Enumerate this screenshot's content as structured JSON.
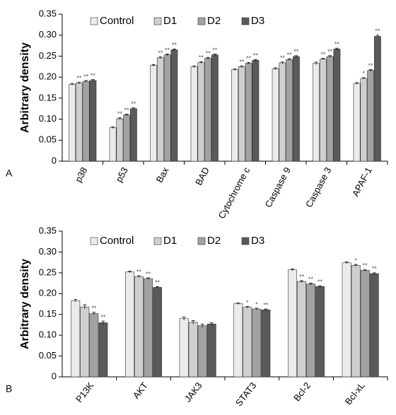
{
  "chart_data": [
    {
      "type": "bar",
      "panel": "A",
      "ylabel": "Arbitrary density",
      "categories": [
        "p38",
        "p53",
        "Bax",
        "BAD",
        "Cytochrome c",
        "Caspase 9",
        "Caspase 3",
        "APAF-1"
      ],
      "series": [
        {
          "name": "Control",
          "color": "#ebebeb",
          "values": [
            0.183,
            0.08,
            0.228,
            0.225,
            0.218,
            0.22,
            0.233,
            0.185
          ],
          "errors": [
            0.002,
            0.002,
            0.002,
            0.002,
            0.002,
            0.002,
            0.003,
            0.002
          ],
          "significance": [
            null,
            null,
            null,
            null,
            null,
            null,
            null,
            null
          ]
        },
        {
          "name": "D1",
          "color": "#cfcfcf",
          "values": [
            0.186,
            0.101,
            0.246,
            0.235,
            0.225,
            0.234,
            0.243,
            0.197
          ],
          "errors": [
            0.002,
            0.002,
            0.002,
            0.002,
            0.002,
            0.002,
            0.002,
            0.002
          ],
          "significance": [
            "**",
            "**",
            "**",
            "**",
            "**",
            "**",
            "**",
            "*"
          ]
        },
        {
          "name": "D2",
          "color": "#a2a2a2",
          "values": [
            0.19,
            0.11,
            0.253,
            0.245,
            0.233,
            0.242,
            0.249,
            0.216
          ],
          "errors": [
            0.002,
            0.002,
            0.002,
            0.002,
            0.002,
            0.002,
            0.002,
            0.002
          ],
          "significance": [
            "**",
            "**",
            "**",
            "**",
            "**",
            "**",
            "**",
            "**"
          ]
        },
        {
          "name": "D3",
          "color": "#5a5a5a",
          "values": [
            0.192,
            0.125,
            0.265,
            0.253,
            0.24,
            0.249,
            0.267,
            0.297
          ],
          "errors": [
            0.002,
            0.002,
            0.002,
            0.002,
            0.002,
            0.002,
            0.002,
            0.003
          ],
          "significance": [
            "**",
            "**",
            "**",
            "**",
            "**",
            "**",
            "**",
            "**"
          ]
        }
      ],
      "ylim": [
        0,
        0.35
      ],
      "yticks": [
        0,
        0.05,
        {
          "value": 0.1,
          "label": "0.10"
        },
        0.15,
        {
          "value": 0.2,
          "label": "0.20"
        },
        0.25,
        {
          "value": 0.3,
          "label": "0.30"
        },
        0.35
      ]
    },
    {
      "type": "bar",
      "panel": "B",
      "ylabel": "Arbitrary density",
      "categories": [
        "P13K",
        "AKT",
        "JAK3",
        "STAT3",
        "Bcl-2",
        "Bcl-xL"
      ],
      "series": [
        {
          "name": "Control",
          "color": "#ebebeb",
          "values": [
            0.183,
            0.252,
            0.14,
            0.176,
            0.257,
            0.274
          ],
          "errors": [
            0.003,
            0.002,
            0.004,
            0.002,
            0.002,
            0.002
          ],
          "significance": [
            null,
            null,
            null,
            null,
            null,
            null
          ]
        },
        {
          "name": "D1",
          "color": "#cfcfcf",
          "values": [
            0.168,
            0.241,
            0.131,
            0.167,
            0.229,
            0.268
          ],
          "errors": [
            0.005,
            0.002,
            0.004,
            0.002,
            0.002,
            0.002
          ],
          "significance": [
            null,
            "**",
            null,
            "*",
            "**",
            "*"
          ]
        },
        {
          "name": "D2",
          "color": "#a2a2a2",
          "values": [
            0.152,
            0.236,
            0.123,
            0.163,
            0.223,
            0.256
          ],
          "errors": [
            0.003,
            0.002,
            0.004,
            0.002,
            0.002,
            0.002
          ],
          "significance": [
            "**",
            "**",
            null,
            "*",
            "**",
            "**"
          ]
        },
        {
          "name": "D3",
          "color": "#5a5a5a",
          "values": [
            0.13,
            0.215,
            0.127,
            0.161,
            0.217,
            0.248
          ],
          "errors": [
            0.004,
            0.002,
            0.003,
            0.002,
            0.002,
            0.002
          ],
          "significance": [
            "**",
            "**",
            null,
            "**",
            "**",
            "**"
          ]
        }
      ],
      "ylim": [
        0,
        0.35
      ],
      "yticks": [
        0,
        0.05,
        {
          "value": 0.1,
          "label": "0.10"
        },
        0.15,
        {
          "value": 0.2,
          "label": "0.20"
        },
        0.25,
        {
          "value": 0.3,
          "label": "0.30"
        },
        0.35
      ]
    }
  ]
}
